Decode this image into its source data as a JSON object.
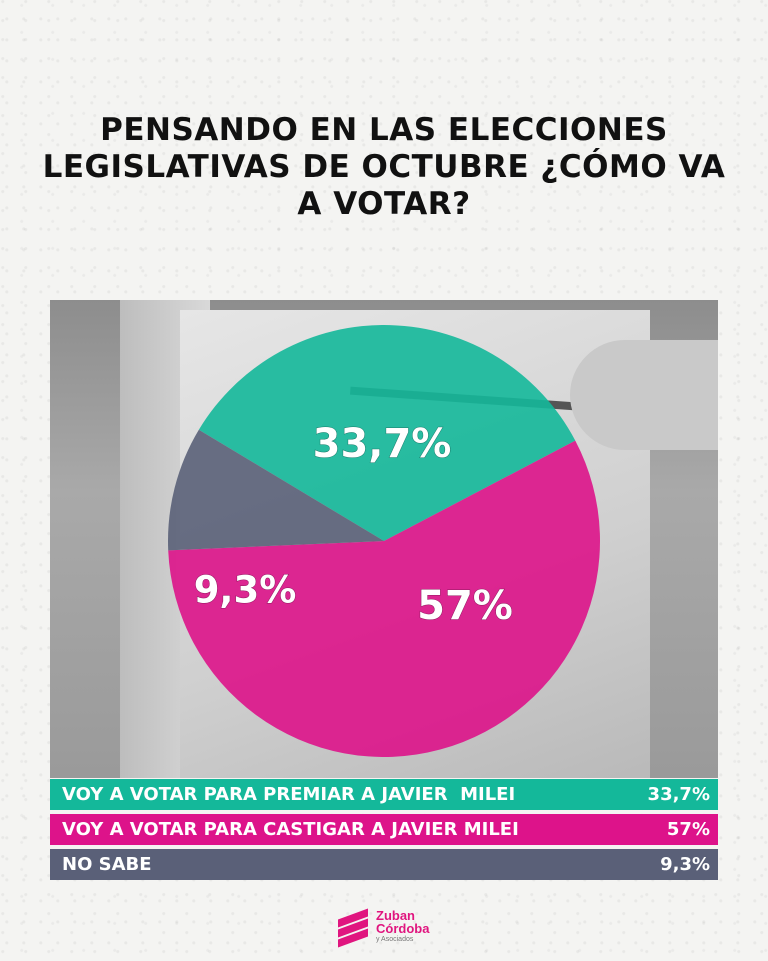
{
  "title": "PENSANDO EN LAS ELECCIONES LEGISLATIVAS DE OCTUBRE ¿CÓMO VA A VOTAR?",
  "colors": {
    "premiar": "#14b89a",
    "castigar": "#dd138a",
    "no_sabe": "#5a6078",
    "title": "#111111"
  },
  "chart_data": {
    "type": "pie",
    "title": "PENSANDO EN LAS ELECCIONES LEGISLATIVAS DE OCTUBRE ¿CÓMO VA A VOTAR?",
    "slices": [
      {
        "label": "VOY A VOTAR PARA PREMIAR A JAVIER  MILEI",
        "value": 33.7,
        "display": "33,7%",
        "color": "#14b89a"
      },
      {
        "label": "VOY A VOTAR PARA CASTIGAR A JAVIER MILEI",
        "value": 57,
        "display": "57%",
        "color": "#dd138a"
      },
      {
        "label": "NO SABE",
        "value": 9.3,
        "display": "9,3%",
        "color": "#5a6078"
      }
    ],
    "legend_placement": "bottom"
  },
  "logo": {
    "line1": "Zuban",
    "line2": "Córdoba",
    "line3": "y Asociados",
    "icon": "zc-stripes-icon"
  }
}
